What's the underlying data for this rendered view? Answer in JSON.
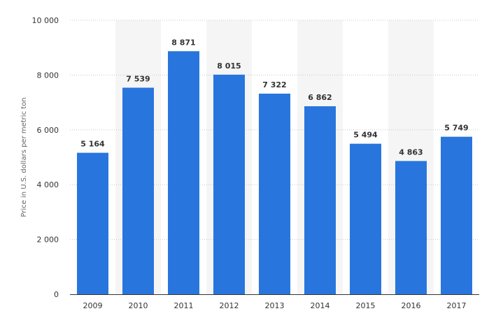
{
  "chart_data": {
    "type": "bar",
    "title": "",
    "xlabel": "",
    "ylabel": "Price in U.S. dollars per metric ton",
    "categories": [
      "2009",
      "2010",
      "2011",
      "2012",
      "2013",
      "2014",
      "2015",
      "2016",
      "2017"
    ],
    "values": [
      5164,
      7539,
      8871,
      8015,
      7322,
      6862,
      5494,
      4863,
      5749
    ],
    "value_labels": [
      "5 164",
      "7 539",
      "8 871",
      "8 015",
      "7 322",
      "6 862",
      "5 494",
      "4 863",
      "5 749"
    ],
    "ylim": [
      0,
      10000
    ],
    "yticks": [
      0,
      2000,
      4000,
      6000,
      8000,
      10000
    ],
    "ytick_labels": [
      "0",
      "2 000",
      "4 000",
      "6 000",
      "8 000",
      "10 000"
    ],
    "grid": true,
    "alternating_column_shading": true,
    "colors": {
      "bar": "#2876dd",
      "shade": "#f5f5f5",
      "grid": "#c8c8c8",
      "axis": "#333333"
    }
  }
}
